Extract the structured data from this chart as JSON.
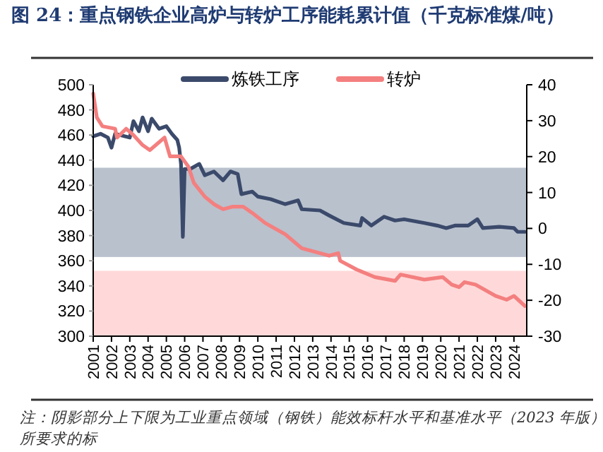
{
  "chart_data": {
    "type": "line",
    "title": "图 24：重点钢铁企业高炉与转炉工序能耗累计值（千克标准煤/吨）",
    "xlim": [
      2001,
      2024.7
    ],
    "xticks": [
      2001,
      2002,
      2003,
      2004,
      2005,
      2006,
      2007,
      2008,
      2009,
      2010,
      2011,
      2012,
      2013,
      2014,
      2015,
      2016,
      2017,
      2018,
      2019,
      2020,
      2021,
      2022,
      2023,
      2024
    ],
    "ylim": [
      300,
      500
    ],
    "yticks": [
      300,
      320,
      340,
      360,
      380,
      400,
      420,
      440,
      460,
      480,
      500
    ],
    "y2lim": [
      -30,
      40
    ],
    "y2ticks": [
      -30,
      -20,
      -10,
      0,
      10,
      20,
      30,
      40
    ],
    "grid": false,
    "legend": "top",
    "line_style": "solid",
    "marker": "none",
    "bands": [
      {
        "axis": "y",
        "from": 363,
        "to": 434,
        "color": "#b9c1cd"
      },
      {
        "axis": "y",
        "from": 300,
        "to": 352,
        "color": "#ffd9d9"
      }
    ],
    "series": [
      {
        "name": "炼铁工序",
        "color": "#3b4a6b",
        "x": [
          2001.0,
          2001.4,
          2001.8,
          2002.0,
          2002.2,
          2003.0,
          2003.2,
          2003.5,
          2003.7,
          2004.0,
          2004.2,
          2004.6,
          2005.0,
          2005.3,
          2005.6,
          2005.7,
          2005.8,
          2005.9,
          2006.0,
          2006.3,
          2006.8,
          2007.1,
          2007.6,
          2008.1,
          2008.5,
          2008.9,
          2009.1,
          2009.7,
          2010.0,
          2010.7,
          2011.5,
          2012.2,
          2012.4,
          2013.4,
          2013.9,
          2014.7,
          2015.6,
          2015.7,
          2016.2,
          2016.9,
          2017.5,
          2018.0,
          2019.1,
          2019.8,
          2020.3,
          2020.8,
          2021.5,
          2022.0,
          2022.3,
          2023.2,
          2024.0,
          2024.2,
          2024.6
        ],
        "values": [
          459,
          461,
          458,
          450,
          461,
          458,
          471,
          463,
          474,
          463,
          473,
          465,
          467,
          461,
          456,
          450,
          437,
          379,
          433,
          433,
          437,
          428,
          431,
          424,
          431,
          429,
          413,
          415,
          411,
          409,
          405,
          408,
          401,
          400,
          396,
          390,
          388,
          394,
          388,
          395,
          392,
          393,
          390,
          388,
          386,
          388,
          388,
          393,
          386,
          387,
          386,
          383,
          383
        ]
      },
      {
        "name": "转炉",
        "color": "#f47f7f",
        "x": [
          2001.0,
          2001.2,
          2001.5,
          2002.2,
          2002.3,
          2002.8,
          2003.2,
          2003.7,
          2004.1,
          2004.9,
          2005.2,
          2005.8,
          2006.2,
          2006.5,
          2007.1,
          2007.6,
          2008.1,
          2008.6,
          2009.2,
          2009.7,
          2010.4,
          2011.5,
          2012.4,
          2012.9,
          2013.9,
          2014.4,
          2014.5,
          2015.4,
          2016.4,
          2017.5,
          2017.8,
          2019.1,
          2020.1,
          2020.6,
          2021.0,
          2021.3,
          2021.9,
          2023.0,
          2023.6,
          2024.0,
          2024.6
        ],
        "values": [
          493,
          474,
          467,
          465,
          458,
          465,
          460,
          452,
          448,
          458,
          443,
          443,
          435,
          422,
          411,
          405,
          401,
          403,
          403,
          398,
          390,
          381,
          370,
          368,
          364,
          366,
          360,
          353,
          347,
          344,
          349,
          345,
          347,
          341,
          339,
          343,
          341,
          332,
          329,
          332,
          324
        ]
      }
    ],
    "annotations": [
      "注：阴影部分上下限为工业重点领域（钢铁）能效标杆水平和基准水平（2023 年版）所要求的标"
    ]
  }
}
